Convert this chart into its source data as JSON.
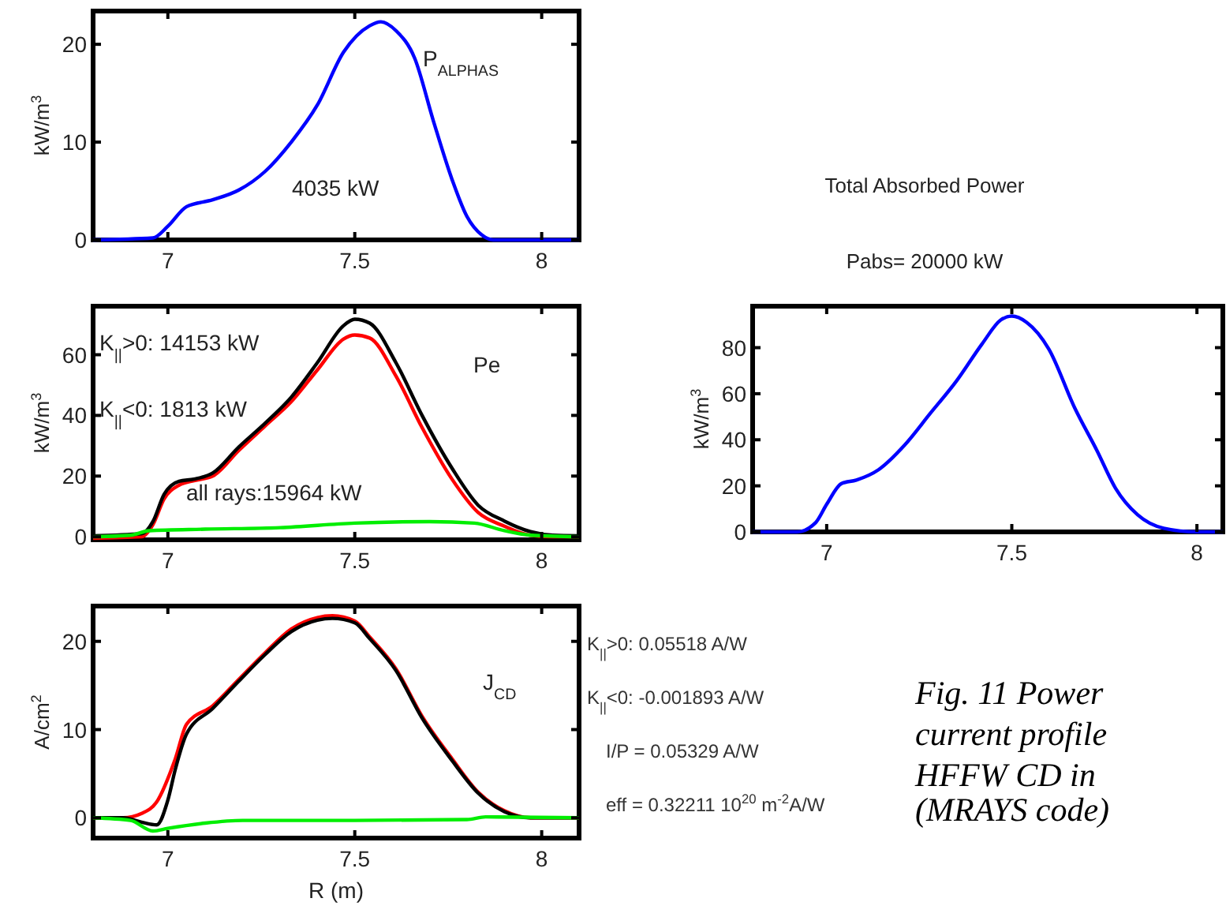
{
  "chart_data": [
    {
      "type": "line",
      "ylabel": "kW/m$^{3}$",
      "xlim": [
        6.8,
        8.1
      ],
      "xticks": [
        7,
        7.5,
        8
      ],
      "ylim": [
        0,
        23.4
      ],
      "yticks": [
        0,
        10,
        20
      ],
      "grid": false,
      "marker": "none",
      "line_style": "solid",
      "annotations": [
        "P$_{ALPHAS}$",
        "4035 kW"
      ],
      "series": [
        {
          "color": "#0000ff",
          "x": [
            6.8,
            6.96,
            7.0,
            7.05,
            7.12,
            7.19,
            7.26,
            7.33,
            7.4,
            7.47,
            7.54,
            7.57,
            7.61,
            7.66,
            7.71,
            7.76,
            7.8,
            7.84,
            7.87,
            8.1
          ],
          "values": [
            0,
            0.2,
            1.4,
            3.4,
            4.1,
            5.1,
            7.0,
            10,
            13.8,
            19.2,
            21.9,
            22.3,
            21.4,
            18.6,
            12.2,
            6.2,
            2.4,
            0.5,
            0,
            0
          ]
        }
      ]
    },
    {
      "type": "line",
      "ylabel": "kW/m$^{3}$",
      "xlim": [
        6.8,
        8.1
      ],
      "xticks": [
        7,
        7.5,
        8
      ],
      "ylim": [
        -1,
        76
      ],
      "yticks": [
        0,
        20,
        40,
        60
      ],
      "grid": false,
      "marker": "none",
      "line_style": "solid",
      "annotations": [
        "K$_{||}$>0: 14153 kW",
        "K$_{||}$<0:   1813 kW",
        "all rays:15964 kW",
        "Pe"
      ],
      "series": [
        {
          "color": "#ff0000",
          "x": [
            6.8,
            6.93,
            6.96,
            6.99,
            7.03,
            7.07,
            7.12,
            7.19,
            7.26,
            7.33,
            7.4,
            7.47,
            7.5,
            7.54,
            7.61,
            7.68,
            7.76,
            7.83,
            7.9,
            7.97,
            8.03,
            8.1
          ],
          "values": [
            -0.5,
            0,
            4,
            12.5,
            17,
            18.5,
            20,
            28.5,
            36.5,
            44.5,
            55,
            65.2,
            66.5,
            65.5,
            53,
            36,
            19,
            8,
            3.5,
            0.5,
            0,
            0
          ]
        },
        {
          "color": "#000000",
          "x": [
            6.8,
            6.93,
            6.96,
            6.99,
            7.03,
            7.07,
            7.12,
            7.19,
            7.26,
            7.33,
            7.4,
            7.47,
            7.5,
            7.54,
            7.61,
            7.68,
            7.76,
            7.83,
            7.9,
            7.97,
            8.03,
            8.1
          ],
          "values": [
            0.3,
            1,
            5,
            14,
            18.3,
            19,
            21,
            29.6,
            37.4,
            46,
            57.4,
            69.6,
            71.7,
            70.4,
            57.4,
            40,
            22.6,
            10.4,
            5.2,
            1.7,
            0.5,
            0.3
          ]
        },
        {
          "color": "#00ee00",
          "x": [
            6.8,
            6.9,
            6.95,
            7.1,
            7.3,
            7.5,
            7.7,
            7.82,
            7.9,
            7.97,
            8.1
          ],
          "values": [
            0,
            0.5,
            2,
            2.5,
            3,
            4.5,
            5,
            4.5,
            2,
            0.5,
            0
          ]
        }
      ]
    },
    {
      "type": "line",
      "title": "Total Absorbed Power",
      "subtitle": "Pabs= 20000 kW",
      "ylabel": "kW/m$^{3}$",
      "xlim": [
        6.8,
        8.07
      ],
      "xticks": [
        7,
        7.5,
        8
      ],
      "ylim": [
        0,
        98
      ],
      "yticks": [
        0,
        20,
        40,
        60,
        80
      ],
      "grid": false,
      "marker": "none",
      "line_style": "solid",
      "series": [
        {
          "color": "#0000ff",
          "x": [
            6.8,
            6.92,
            6.97,
            7.0,
            7.04,
            7.08,
            7.14,
            7.21,
            7.28,
            7.35,
            7.42,
            7.47,
            7.5,
            7.54,
            7.6,
            7.67,
            7.73,
            7.78,
            7.84,
            7.91,
            8.0,
            8.07
          ],
          "values": [
            0,
            0,
            4,
            12,
            21,
            22.5,
            27,
            37.6,
            51.5,
            65.4,
            81.7,
            92,
            93.7,
            91,
            79.4,
            53.8,
            35.3,
            19,
            7.4,
            1.6,
            0,
            0
          ]
        }
      ]
    },
    {
      "type": "line",
      "xlabel": "R (m)",
      "ylabel": "A/cm$^{2}$",
      "xlim": [
        6.8,
        8.1
      ],
      "xticks": [
        7,
        7.5,
        8
      ],
      "ylim": [
        -2.3,
        24
      ],
      "yticks": [
        0,
        10,
        20
      ],
      "grid": false,
      "marker": "none",
      "line_style": "solid",
      "annotations": [
        "J$_{CD}$",
        "K$_{||}$>0:  0.05518 A/W",
        "K$_{||}$<0: -0.001893 A/W",
        "I/P = 0.05329 A/W",
        "eff = 0.32211 10$^{20}$ m$^{-2}$A/W",
        "Fig. 11 Power",
        "current profile",
        "HFFW CD in",
        "(MRAYS code)"
      ],
      "series": [
        {
          "color": "#ff0000",
          "x": [
            6.8,
            6.88,
            6.93,
            6.97,
            7.02,
            7.05,
            7.12,
            7.19,
            7.26,
            7.33,
            7.4,
            7.44,
            7.5,
            7.54,
            7.61,
            7.68,
            7.76,
            7.83,
            7.9,
            7.97,
            8.1
          ],
          "values": [
            0,
            0,
            0.5,
            1.8,
            6.7,
            10.6,
            12.7,
            15.7,
            18.7,
            21.4,
            22.7,
            22.9,
            22.3,
            20.5,
            16.9,
            11.5,
            6.7,
            2.9,
            0.8,
            0,
            0
          ]
        },
        {
          "color": "#000000",
          "x": [
            6.8,
            6.88,
            6.93,
            6.97,
            7.0,
            7.02,
            7.05,
            7.12,
            7.19,
            7.26,
            7.33,
            7.4,
            7.44,
            7.5,
            7.54,
            7.61,
            7.68,
            7.76,
            7.83,
            7.9,
            7.97,
            8.1
          ],
          "values": [
            0,
            0,
            -0.5,
            -0.8,
            2,
            5.5,
            9.5,
            12.4,
            15.5,
            18.5,
            21.1,
            22.4,
            22.6,
            22.1,
            20.3,
            16.7,
            11.3,
            6.5,
            2.8,
            0.7,
            0,
            0
          ]
        },
        {
          "color": "#00ee00",
          "x": [
            6.8,
            6.9,
            6.96,
            7.0,
            7.1,
            7.2,
            7.5,
            7.8,
            7.85,
            8.1
          ],
          "values": [
            0,
            -0.3,
            -1.5,
            -1.2,
            -0.6,
            -0.3,
            -0.3,
            -0.2,
            0.1,
            0
          ]
        }
      ]
    }
  ]
}
